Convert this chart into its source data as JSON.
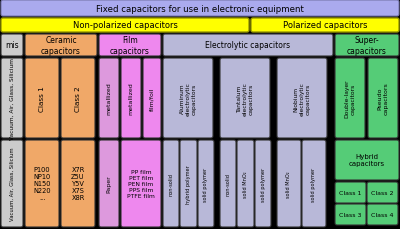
{
  "title": "Fixed capacitors for use in electronic equipment",
  "title_bg": "#aaaaee",
  "non_polarized_label": "Non-polarized capacitors",
  "polarized_label": "Polarized capacitors",
  "yellow_bg": "#ffff00",
  "mis_label": "mis",
  "gray_bg": "#cccccc",
  "ceramic_label": "Ceramic\ncapacitors",
  "orange_bg": "#f0a868",
  "film_label": "Film\ncapacitors",
  "pink_bg": "#ee88ee",
  "pink_light_bg": "#dd99dd",
  "electrolytic_label": "Electrolytic capacitors",
  "lavender_bg": "#b8b8d8",
  "super_label": "Super-\ncapacitors",
  "green_bg": "#55cc77",
  "vacuum_label": "Vacuum, Air, Glass, Silicium",
  "class1_label": "Class 1",
  "class2_label": "Class 2",
  "film_metallized1_label": "metallized",
  "film_metallized2_label": "metallized",
  "film_foil_label": "film/foil",
  "al_label": "Aluminum\nelectrolytic\ncapacitors",
  "ta_label": "Tantalum\nelectrolytic\ncapacitors",
  "nb_label": "Niobium\nelectrolytic\ncapacitors",
  "double_layer_label": "Double-layer\ncapacitors",
  "pseudo_label": "Pseudo\ncapacitors",
  "ceramic_bottom1": "P100\nNP10\nN150\nN220\n...",
  "ceramic_bottom2": "X7R\nZ5U\nY5V\nX7S\nX8R",
  "film_paper_label": "Paper",
  "film_bottom_label": "PP film\nPET film\nPEN film\nPPS film\nPTFE film",
  "al_nonsolid": "non-solid",
  "al_hybrid": "hybrid polymer",
  "al_solid": "solid polymer",
  "ta_nonsolid": "non-solid",
  "ta_solid_mno2": "solid MnO₂",
  "ta_solid_poly": "solid polymer",
  "nb_solid_mno2": "solid MnO₂",
  "nb_solid_poly": "solid polymer",
  "hybrid_label": "Hybrid\ncapacitors",
  "hybrid_c1": "Class 1",
  "hybrid_c2": "Class 2",
  "hybrid_c3": "Class 3",
  "hybrid_c4": "Class 4",
  "bg_color": "#000000"
}
